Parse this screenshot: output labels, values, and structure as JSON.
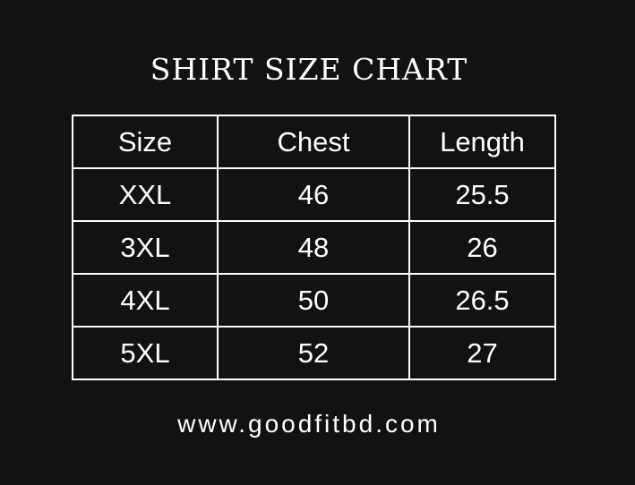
{
  "title": "SHIRT SIZE CHART",
  "table": {
    "headers": [
      "Size",
      "Chest",
      "Length"
    ],
    "rows": [
      [
        "XXL",
        "46",
        "25.5"
      ],
      [
        "3XL",
        "48",
        "26"
      ],
      [
        "4XL",
        "50",
        "26.5"
      ],
      [
        "5XL",
        "52",
        "27"
      ]
    ]
  },
  "website": "www.goodfitbd.com"
}
